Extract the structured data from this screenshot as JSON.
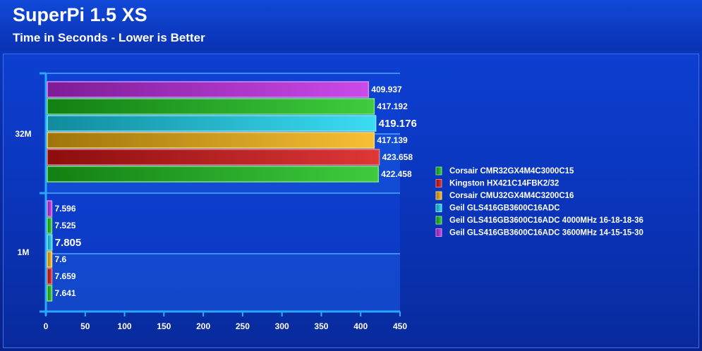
{
  "header": {
    "title": "SuperPi 1.5 XS",
    "subtitle": "Time in Seconds - Lower is Better"
  },
  "chart_data": {
    "type": "bar",
    "orientation": "horizontal",
    "title": "SuperPi 1.5 XS",
    "subtitle": "Time in Seconds - Lower is Better",
    "categories": [
      "32M",
      "1M"
    ],
    "xlim": [
      0,
      450
    ],
    "x_ticks": [
      0,
      50,
      100,
      150,
      200,
      250,
      300,
      350,
      400,
      450
    ],
    "legend_position": "right",
    "series": [
      {
        "name": "Geil GLS416GB3600C16ADC 3600MHz 14-15-15-30",
        "color": "#c22ae6",
        "values": [
          409.937,
          7.596
        ],
        "labels": [
          "409.937",
          "7.596"
        ],
        "emphasis": false
      },
      {
        "name": "Geil GLS416GB3600C16ADC 4000MHz 16-18-18-36",
        "color": "#1cc41c",
        "values": [
          417.192,
          7.525
        ],
        "labels": [
          "417.192",
          "7.525"
        ],
        "emphasis": false
      },
      {
        "name": "Geil GLS416GB3600C16ADC",
        "color": "#18d6f2",
        "values": [
          419.176,
          7.805
        ],
        "labels": [
          "419.176",
          "7.805"
        ],
        "emphasis": true
      },
      {
        "name": "Corsair CMU32GX4M4C3200C16",
        "color": "#f5b410",
        "values": [
          417.139,
          7.6
        ],
        "labels": [
          "417.139",
          "7.6"
        ],
        "emphasis": false
      },
      {
        "name": "Kingston HX421C14FBK2/32",
        "color": "#d81414",
        "values": [
          423.658,
          7.659
        ],
        "labels": [
          "423.658",
          "7.659"
        ],
        "emphasis": false
      },
      {
        "name": "Corsair CMR32GX4M4C3000C15",
        "color": "#1cc41c",
        "values": [
          422.458,
          7.641
        ],
        "labels": [
          "422.458",
          "7.641"
        ],
        "emphasis": false
      }
    ],
    "legend_order": [
      5,
      4,
      3,
      2,
      1,
      0
    ]
  }
}
